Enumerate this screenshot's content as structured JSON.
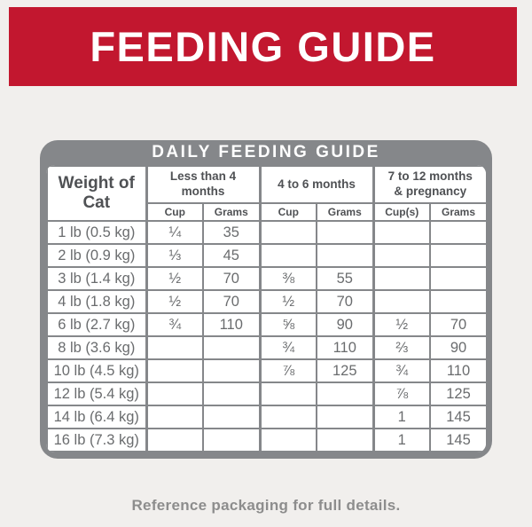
{
  "banner": {
    "title": "FEEDING GUIDE"
  },
  "table": {
    "title": "DAILY FEEDING GUIDE",
    "weight_header": "Weight of Cat",
    "group_headers": [
      "Less than 4 months",
      "4 to 6 months",
      "7 to 12 months & pregnancy"
    ],
    "sub_headers": [
      "Cup",
      "Grams",
      "Cup",
      "Grams",
      "Cup(s)",
      "Grams"
    ],
    "rows": [
      {
        "weight": "1 lb (0.5 kg)",
        "values": [
          "¼",
          "35",
          "",
          "",
          "",
          ""
        ]
      },
      {
        "weight": "2 lb (0.9 kg)",
        "values": [
          "⅓",
          "45",
          "",
          "",
          "",
          ""
        ]
      },
      {
        "weight": "3 lb (1.4 kg)",
        "values": [
          "½",
          "70",
          "⅜",
          "55",
          "",
          ""
        ]
      },
      {
        "weight": "4 lb (1.8 kg)",
        "values": [
          "½",
          "70",
          "½",
          "70",
          "",
          ""
        ]
      },
      {
        "weight": "6 lb (2.7 kg)",
        "values": [
          "¾",
          "110",
          "⅝",
          "90",
          "½",
          "70"
        ]
      },
      {
        "weight": "8 lb (3.6 kg)",
        "values": [
          "",
          "",
          "¾",
          "110",
          "⅔",
          "90"
        ]
      },
      {
        "weight": "10 lb (4.5 kg)",
        "values": [
          "",
          "",
          "⅞",
          "125",
          "¾",
          "110"
        ]
      },
      {
        "weight": "12 lb (5.4 kg)",
        "values": [
          "",
          "",
          "",
          "",
          "⅞",
          "125"
        ]
      },
      {
        "weight": "14 lb (6.4 kg)",
        "values": [
          "",
          "",
          "",
          "",
          "1",
          "145"
        ]
      },
      {
        "weight": "16 lb (7.3 kg)",
        "values": [
          "",
          "",
          "",
          "",
          "1",
          "145"
        ]
      }
    ]
  },
  "footer": {
    "note": "Reference packaging for full details."
  },
  "colors": {
    "banner_red": "#C2172F",
    "frame_gray": "#85878A",
    "header_text": "#4F5154",
    "body_text": "#6A6C6E",
    "footer_text": "#8D8D8D",
    "page_bg": "#F1EFED",
    "cell_bg": "#FFFFFF"
  }
}
